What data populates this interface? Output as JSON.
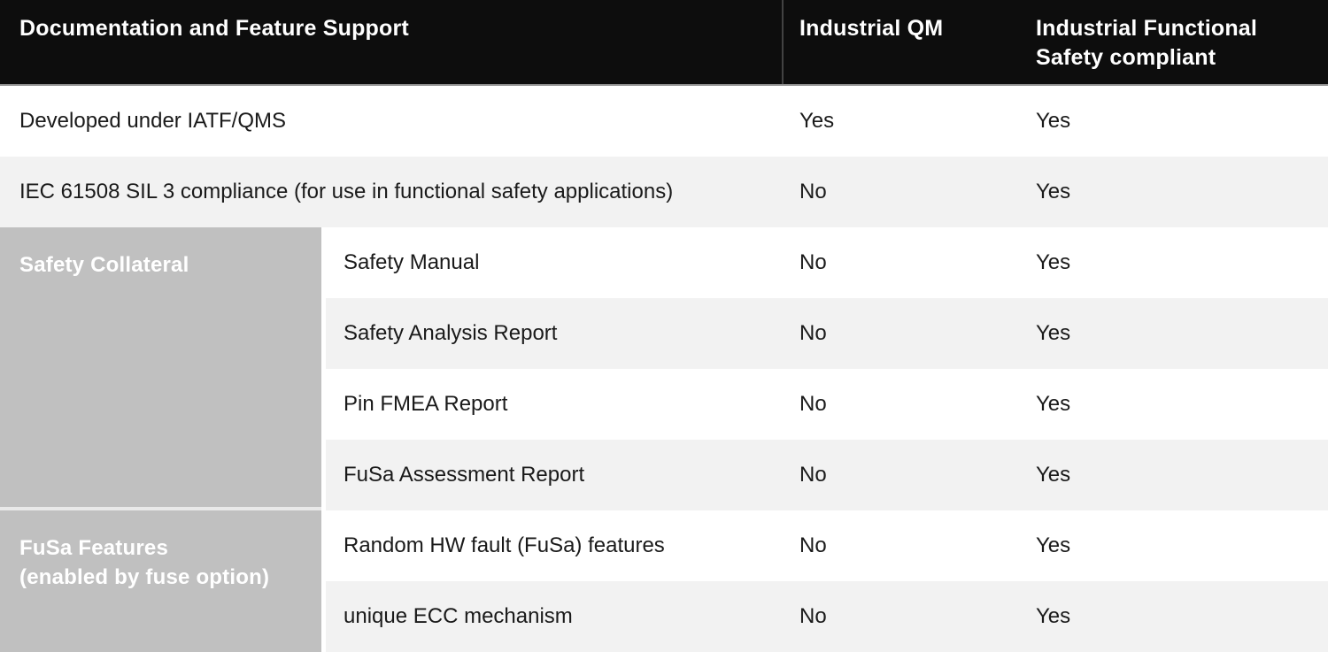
{
  "table": {
    "header": {
      "feature": "Documentation and Feature Support",
      "industrial_qm": "Industrial QM",
      "industrial_fusa": "Industrial Functional Safety compliant"
    },
    "simple_rows": [
      {
        "label": "Developed under IATF/QMS",
        "industrial_qm": "Yes",
        "industrial_fusa": "Yes"
      },
      {
        "label": "IEC 61508 SIL 3 compliance (for use in functional safety applications)",
        "industrial_qm": "No",
        "industrial_fusa": "Yes"
      }
    ],
    "groups": [
      {
        "label": "Safety Collateral",
        "rows": [
          {
            "label": "Safety Manual",
            "industrial_qm": "No",
            "industrial_fusa": "Yes"
          },
          {
            "label": "Safety Analysis Report",
            "industrial_qm": "No",
            "industrial_fusa": "Yes"
          },
          {
            "label": "Pin FMEA Report",
            "industrial_qm": "No",
            "industrial_fusa": "Yes"
          },
          {
            "label": "FuSa Assessment Report",
            "industrial_qm": "No",
            "industrial_fusa": "Yes"
          }
        ]
      },
      {
        "label": "FuSa Features\n(enabled by fuse option)",
        "rows": [
          {
            "label": "Random HW fault (FuSa) features",
            "industrial_qm": "No",
            "industrial_fusa": "Yes"
          },
          {
            "label": "unique ECC mechanism",
            "industrial_qm": "No",
            "industrial_fusa": "Yes"
          }
        ]
      }
    ]
  },
  "colors": {
    "header_bg": "#0d0d0d",
    "header_text": "#ffffff",
    "header_divider": "#424242",
    "stripe_bg": "#f2f2f2",
    "group_cell_bg": "#c0c0c0",
    "body_text": "#1a1a1a"
  }
}
